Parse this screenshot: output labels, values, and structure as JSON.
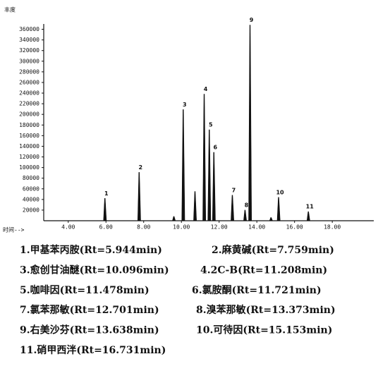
{
  "chart_data": {
    "type": "chromatogram",
    "y_label": "丰度",
    "x_label": "时间-->",
    "xlim": [
      2.7,
      20.2
    ],
    "ylim": [
      0,
      370000
    ],
    "xticks": [
      {
        "value": 4,
        "label": "4.00"
      },
      {
        "value": 6,
        "label": "6.00"
      },
      {
        "value": 8,
        "label": "8.00"
      },
      {
        "value": 10,
        "label": "10.00"
      },
      {
        "value": 12,
        "label": "12.00"
      },
      {
        "value": 14,
        "label": "14.00"
      },
      {
        "value": 16,
        "label": "16.00"
      },
      {
        "value": 18,
        "label": "18.00"
      }
    ],
    "yticks": [
      20000,
      40000,
      60000,
      80000,
      100000,
      120000,
      140000,
      160000,
      180000,
      200000,
      220000,
      240000,
      260000,
      280000,
      300000,
      320000,
      340000,
      360000
    ],
    "color": "#111111",
    "peak_labels": [
      "1",
      "2",
      null,
      "3",
      null,
      "4",
      "5",
      "6",
      "7",
      "8",
      "9",
      null,
      "10",
      "11"
    ],
    "x": [
      5.944,
      7.759,
      9.6,
      10.096,
      10.72,
      11.208,
      11.478,
      11.721,
      12.701,
      13.373,
      13.638,
      14.75,
      15.153,
      16.731
    ],
    "values": [
      42000,
      91000,
      8000,
      209000,
      55000,
      238000,
      171000,
      128500,
      48000,
      20000,
      368000,
      6000,
      44000,
      17000
    ],
    "legend": [
      "1.甲基苯丙胺(Rt=5.944min)",
      "2.麻黄碱(Rt=7.759min)",
      "3.愈创甘油醚(Rt=10.096min)",
      "4.2C-B(Rt=11.208min)",
      "5.咖啡因(Rt=11.478min)",
      "6.氯胺酮(Rt=11.721min)",
      "7.氯苯那敏(Rt=12.701min)",
      "8.溴苯那敏(Rt=13.373min)",
      "9.右美沙芬(Rt=13.638min)",
      "10.可待因(Rt=15.153min)",
      "11.硝甲西泮(Rt=16.731min)"
    ]
  }
}
